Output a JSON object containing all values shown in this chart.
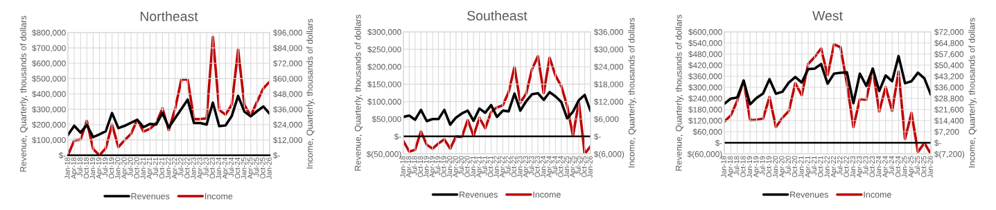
{
  "chart_data": [
    {
      "type": "line",
      "title": "Northeast",
      "ylabel": "Revenue, Quarterly, thousands of dollars",
      "y2label": "Income, Quarterly, thousands of dollars",
      "categories": [
        "Jan-18",
        "Apr-18",
        "Jul-18",
        "Oct-18",
        "Jan-19",
        "Apr-19",
        "Jul-19",
        "Oct-19",
        "Jan-20",
        "Apr-20",
        "Jul-20",
        "Oct-20",
        "Jan-21",
        "Apr-21",
        "Jul-21",
        "Oct-21",
        "Jan-22",
        "Apr-22",
        "Jul-22",
        "Oct-22",
        "Jan-23",
        "Apr-23",
        "Jul-23",
        "Oct-23",
        "Jan-24",
        "Apr-24",
        "Jul-24",
        "Oct-24",
        "Jan-25",
        "Apr-25",
        "Jul-25",
        "Oct-25",
        "Jan-26"
      ],
      "series": [
        {
          "name": "Revenues",
          "color": "#000000",
          "values": [
            132000,
            192000,
            148000,
            197000,
            118000,
            136000,
            156000,
            275000,
            177000,
            192000,
            212000,
            231000,
            183000,
            204000,
            201000,
            275000,
            181000,
            242000,
            302000,
            363000,
            210000,
            210000,
            200000,
            343000,
            190000,
            194000,
            257000,
            387000,
            284000,
            254000,
            287000,
            318000,
            271000
          ]
        },
        {
          "name": "Income",
          "color": "#c00000",
          "axis": "y2",
          "values": [
            0,
            11600,
            12200,
            26900,
            4900,
            0,
            5400,
            24100,
            6400,
            11800,
            16700,
            27800,
            18500,
            20700,
            25000,
            36700,
            19600,
            36300,
            59300,
            59300,
            28300,
            28300,
            28900,
            92600,
            35400,
            31800,
            39600,
            82600,
            39400,
            30900,
            41700,
            52300,
            57500
          ]
        }
      ],
      "ylim": [
        0,
        800000
      ],
      "yticks": [
        {
          "value": 0,
          "label": "$-"
        },
        {
          "value": 100000,
          "label": "$100,000"
        },
        {
          "value": 200000,
          "label": "$200,000"
        },
        {
          "value": 300000,
          "label": "$300,000"
        },
        {
          "value": 400000,
          "label": "$400,000"
        },
        {
          "value": 500000,
          "label": "$500,000"
        },
        {
          "value": 600000,
          "label": "$600,000"
        },
        {
          "value": 700000,
          "label": "$700,000"
        },
        {
          "value": 800000,
          "label": "$800,000"
        }
      ],
      "y2lim": [
        0,
        96000
      ],
      "y2ticks": [
        {
          "value": 0,
          "label": "$-"
        },
        {
          "value": 12000,
          "label": "$12,000"
        },
        {
          "value": 24000,
          "label": "$24,000"
        },
        {
          "value": 36000,
          "label": "$36,000"
        },
        {
          "value": 48000,
          "label": "$48,000"
        },
        {
          "value": 60000,
          "label": "$60,000"
        },
        {
          "value": 72000,
          "label": "$72,000"
        },
        {
          "value": 84000,
          "label": "$84,000"
        },
        {
          "value": 96000,
          "label": "$96,000"
        }
      ],
      "grid": true,
      "legend": "bottom"
    },
    {
      "type": "line",
      "title": "Southeast",
      "ylabel": "Revenue, Quarterly, thousands of dollars",
      "y2label": "Income, Quarterly, thousands of dollars",
      "categories": [
        "Jan-18",
        "Apr-18",
        "Jul-18",
        "Oct-18",
        "Jan-19",
        "Apr-19",
        "Jul-19",
        "Oct-19",
        "Jan-20",
        "Apr-20",
        "Jul-20",
        "Oct-20",
        "Jan-21",
        "Apr-21",
        "Jul-21",
        "Oct-21",
        "Jan-22",
        "Apr-22",
        "Jul-22",
        "Oct-22",
        "Jan-23",
        "Apr-23",
        "Jul-23",
        "Oct-23",
        "Jan-24",
        "Apr-24",
        "Jul-24",
        "Oct-24",
        "Jan-25",
        "Apr-25",
        "Jul-25",
        "Oct-25",
        "Jan-26"
      ],
      "series": [
        {
          "name": "Revenues",
          "color": "#000000",
          "values": [
            56000,
            60000,
            48000,
            76000,
            44000,
            50000,
            50000,
            76000,
            34000,
            54000,
            66000,
            74000,
            45000,
            80000,
            68000,
            90000,
            56000,
            74000,
            72000,
            123000,
            74000,
            101000,
            121000,
            124000,
            105000,
            127000,
            115000,
            99000,
            52000,
            71000,
            104000,
            119000,
            73000
          ]
        },
        {
          "name": "Income",
          "color": "#c00000",
          "axis": "y2",
          "values": [
            -1600,
            -5200,
            -4600,
            1700,
            -2900,
            -4200,
            -2400,
            -1000,
            -4200,
            0,
            -200,
            5700,
            200,
            6400,
            2800,
            8400,
            10000,
            10700,
            15300,
            23900,
            11600,
            14800,
            23200,
            27600,
            14900,
            27100,
            21000,
            17300,
            10500,
            200,
            11800,
            -6000,
            -3400
          ]
        }
      ],
      "ylim": [
        -50000,
        300000
      ],
      "yticks": [
        {
          "value": -50000,
          "label": "$(50,000)"
        },
        {
          "value": 0,
          "label": "$-"
        },
        {
          "value": 50000,
          "label": "$50,000"
        },
        {
          "value": 100000,
          "label": "$100,000"
        },
        {
          "value": 150000,
          "label": "$150,000"
        },
        {
          "value": 200000,
          "label": "$200,000"
        },
        {
          "value": 250000,
          "label": "$250,000"
        },
        {
          "value": 300000,
          "label": "$300,000"
        }
      ],
      "y2lim": [
        -6000,
        36000
      ],
      "y2ticks": [
        {
          "value": -6000,
          "label": "$(6,000)"
        },
        {
          "value": 0,
          "label": "$-"
        },
        {
          "value": 6000,
          "label": "$6,000"
        },
        {
          "value": 12000,
          "label": "$12,000"
        },
        {
          "value": 18000,
          "label": "$18,000"
        },
        {
          "value": 24000,
          "label": "$24,000"
        },
        {
          "value": 30000,
          "label": "$30,000"
        },
        {
          "value": 36000,
          "label": "$36,000"
        }
      ],
      "ref_lines": [
        {
          "axis": "y",
          "value": 0,
          "color": "#000000"
        }
      ],
      "grid": true,
      "legend": "bottom"
    },
    {
      "type": "line",
      "title": "West",
      "ylabel": "Revenue, Quarterly, thousands of dollars",
      "y2label": "Income, Quarterly, thousands of dollars",
      "categories": [
        "Jan-18",
        "Apr-18",
        "Jul-18",
        "Oct-18",
        "Jan-19",
        "Apr-19",
        "Jul-19",
        "Oct-19",
        "Jan-20",
        "Apr-20",
        "Jul-20",
        "Oct-20",
        "Jan-21",
        "Apr-21",
        "Jul-21",
        "Oct-21",
        "Jan-22",
        "Apr-22",
        "Jul-22",
        "Oct-22",
        "Jan-23",
        "Apr-23",
        "Jul-23",
        "Oct-23",
        "Jan-24",
        "Apr-24",
        "Jul-24",
        "Oct-24",
        "Jan-25",
        "Apr-25",
        "Jul-25",
        "Oct-25",
        "Jan-26"
      ],
      "series": [
        {
          "name": "Revenues",
          "color": "#000000",
          "values": [
            211000,
            239000,
            245000,
            336000,
            208000,
            243000,
            266000,
            344000,
            265000,
            276000,
            326000,
            356000,
            326000,
            399000,
            401000,
            426000,
            320000,
            374000,
            379000,
            381000,
            214000,
            374000,
            308000,
            401000,
            280000,
            364000,
            333000,
            469000,
            322000,
            333000,
            379000,
            348000,
            260000
          ]
        },
        {
          "name": "Income",
          "color": "#c00000",
          "axis": "y2",
          "values": [
            13700,
            17700,
            27200,
            40400,
            14600,
            14900,
            15600,
            29700,
            10200,
            16200,
            20600,
            38700,
            30900,
            51200,
            55700,
            61200,
            43700,
            63900,
            62000,
            38400,
            10200,
            28400,
            27900,
            48200,
            20300,
            36200,
            20700,
            46200,
            2400,
            19400,
            -5900,
            -200,
            -7200
          ]
        }
      ],
      "ylim": [
        -60000,
        600000
      ],
      "yticks": [
        {
          "value": -60000,
          "label": "$(60,000)"
        },
        {
          "value": 0,
          "label": "$-"
        },
        {
          "value": 60000,
          "label": "$60,000"
        },
        {
          "value": 120000,
          "label": "$120,000"
        },
        {
          "value": 180000,
          "label": "$180,000"
        },
        {
          "value": 240000,
          "label": "$240,000"
        },
        {
          "value": 300000,
          "label": "$300,000"
        },
        {
          "value": 360000,
          "label": "$360,000"
        },
        {
          "value": 420000,
          "label": "$420,000"
        },
        {
          "value": 480000,
          "label": "$480,000"
        },
        {
          "value": 540000,
          "label": "$540,000"
        },
        {
          "value": 600000,
          "label": "$600,000"
        }
      ],
      "y2lim": [
        -7200,
        72000
      ],
      "y2ticks": [
        {
          "value": -7200,
          "label": "$(7,200)"
        },
        {
          "value": 0,
          "label": "$-"
        },
        {
          "value": 7200,
          "label": "$7,200"
        },
        {
          "value": 14400,
          "label": "$14,400"
        },
        {
          "value": 21600,
          "label": "$21,600"
        },
        {
          "value": 28800,
          "label": "$28,800"
        },
        {
          "value": 36000,
          "label": "$36,000"
        },
        {
          "value": 43200,
          "label": "$43,200"
        },
        {
          "value": 50400,
          "label": "$50,400"
        },
        {
          "value": 57600,
          "label": "$57,600"
        },
        {
          "value": 64800,
          "label": "$64,800"
        },
        {
          "value": 72000,
          "label": "$72,000"
        }
      ],
      "ref_lines": [
        {
          "axis": "y",
          "value": 0,
          "color": "#000000"
        }
      ],
      "grid": true,
      "legend": "bottom"
    }
  ]
}
